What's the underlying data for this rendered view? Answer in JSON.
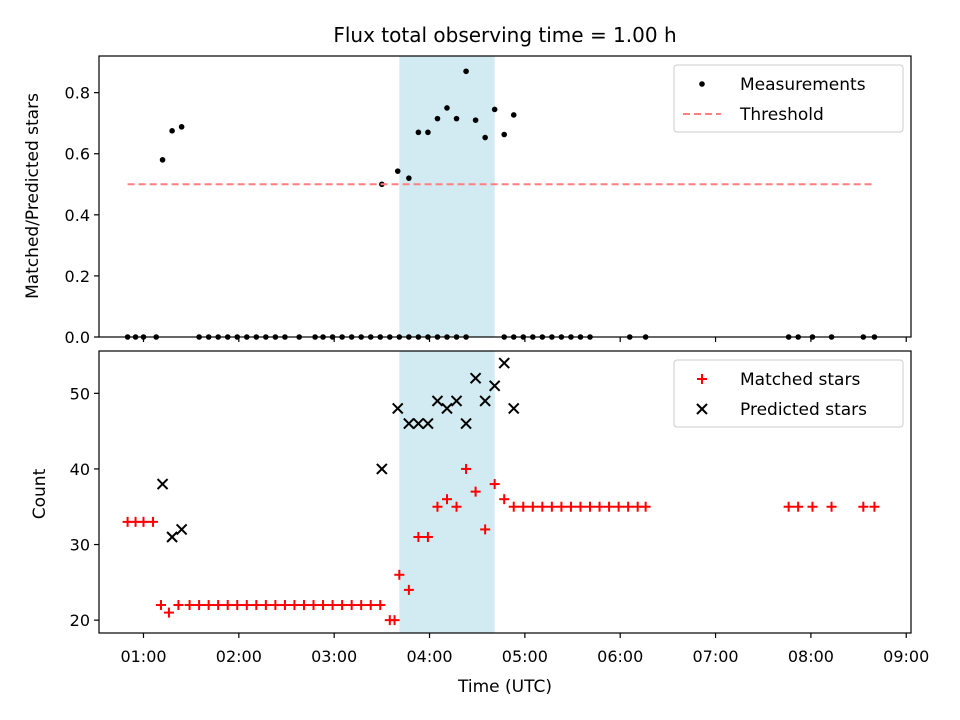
{
  "figure": {
    "title": "Flux total observing time = 1.00 h",
    "xlabel": "Time (UTC)"
  },
  "chart_data": [
    {
      "type": "scatter",
      "ylabel": "Matched/Predicted stars",
      "ylim": [
        0,
        0.92
      ],
      "yticks": [
        0.0,
        0.2,
        0.4,
        0.6,
        0.8
      ],
      "ytick_labels": [
        "0.0",
        "0.2",
        "0.4",
        "0.6",
        "0.8"
      ],
      "xticks": [
        "01:00",
        "02:00",
        "03:00",
        "04:00",
        "05:00",
        "06:00",
        "07:00",
        "08:00",
        "09:00"
      ],
      "xlim": [
        "00:32",
        "09:03"
      ],
      "shaded_region": {
        "from": "03:41",
        "to": "04:41",
        "color": "#add8e6"
      },
      "legend": {
        "placement": "top-right",
        "entries": [
          "Measurements",
          "Threshold"
        ]
      },
      "series": [
        {
          "name": "Measurements",
          "marker": "dot",
          "color": "#000000",
          "points": [
            [
              "00:50",
              0
            ],
            [
              "00:55",
              0
            ],
            [
              "01:00",
              0
            ],
            [
              "01:08",
              0
            ],
            [
              "01:12",
              0.58
            ],
            [
              "01:18",
              0.675
            ],
            [
              "01:24",
              0.688
            ],
            [
              "01:35",
              0
            ],
            [
              "01:41",
              0
            ],
            [
              "01:47",
              0
            ],
            [
              "01:53",
              0
            ],
            [
              "01:59",
              0
            ],
            [
              "02:05",
              0
            ],
            [
              "02:11",
              0
            ],
            [
              "02:17",
              0
            ],
            [
              "02:23",
              0
            ],
            [
              "02:29",
              0
            ],
            [
              "02:38",
              0
            ],
            [
              "02:48",
              0
            ],
            [
              "02:53",
              0
            ],
            [
              "02:59",
              0
            ],
            [
              "03:05",
              0
            ],
            [
              "03:11",
              0
            ],
            [
              "03:17",
              0
            ],
            [
              "03:23",
              0
            ],
            [
              "03:29",
              0
            ],
            [
              "03:35",
              0
            ],
            [
              "03:41",
              0
            ],
            [
              "03:47",
              0
            ],
            [
              "03:53",
              0
            ],
            [
              "03:59",
              0
            ],
            [
              "04:05",
              0
            ],
            [
              "04:11",
              0
            ],
            [
              "04:17",
              0
            ],
            [
              "04:23",
              0
            ],
            [
              "03:30",
              0.5
            ],
            [
              "03:40",
              0.543
            ],
            [
              "03:47",
              0.52
            ],
            [
              "03:53",
              0.67
            ],
            [
              "03:59",
              0.67
            ],
            [
              "04:05",
              0.715
            ],
            [
              "04:11",
              0.75
            ],
            [
              "04:17",
              0.715
            ],
            [
              "04:23",
              0.87
            ],
            [
              "04:29",
              0.71
            ],
            [
              "04:35",
              0.653
            ],
            [
              "04:41",
              0.745
            ],
            [
              "04:47",
              0.663
            ],
            [
              "04:53",
              0.727
            ],
            [
              "04:47",
              0
            ],
            [
              "04:53",
              0
            ],
            [
              "04:59",
              0
            ],
            [
              "05:05",
              0
            ],
            [
              "05:11",
              0
            ],
            [
              "05:17",
              0
            ],
            [
              "05:23",
              0
            ],
            [
              "05:29",
              0
            ],
            [
              "05:35",
              0
            ],
            [
              "05:41",
              0
            ],
            [
              "06:06",
              0
            ],
            [
              "06:16",
              0
            ],
            [
              "07:46",
              0
            ],
            [
              "07:52",
              0
            ],
            [
              "08:01",
              0
            ],
            [
              "08:13",
              0
            ],
            [
              "08:33",
              0
            ],
            [
              "08:40",
              0
            ]
          ]
        },
        {
          "name": "Threshold",
          "style": "dashed",
          "color": "#ff7f7f",
          "x_from": "00:50",
          "x_to": "08:40",
          "y": 0.5
        }
      ]
    },
    {
      "type": "scatter",
      "ylabel": "Count",
      "ylim": [
        18.3,
        55.6
      ],
      "yticks": [
        20,
        30,
        40,
        50
      ],
      "ytick_labels": [
        "20",
        "30",
        "40",
        "50"
      ],
      "xticks": [
        "01:00",
        "02:00",
        "03:00",
        "04:00",
        "05:00",
        "06:00",
        "07:00",
        "08:00",
        "09:00"
      ],
      "xtick_labels": [
        "01:00",
        "02:00",
        "03:00",
        "04:00",
        "05:00",
        "06:00",
        "07:00",
        "08:00",
        "09:00"
      ],
      "xlim": [
        "00:32",
        "09:03"
      ],
      "shaded_region": {
        "from": "03:41",
        "to": "04:41",
        "color": "#add8e6"
      },
      "legend": {
        "placement": "top-right",
        "entries": [
          "Matched stars",
          "Predicted stars"
        ]
      },
      "series": [
        {
          "name": "Matched stars",
          "marker": "plus",
          "color": "#ff0000",
          "points": [
            [
              "00:50",
              33
            ],
            [
              "00:55",
              33
            ],
            [
              "01:00",
              33
            ],
            [
              "01:06",
              33
            ],
            [
              "01:11",
              22
            ],
            [
              "01:16",
              21
            ],
            [
              "01:22",
              22
            ],
            [
              "01:29",
              22
            ],
            [
              "01:35",
              22
            ],
            [
              "01:41",
              22
            ],
            [
              "01:47",
              22
            ],
            [
              "01:53",
              22
            ],
            [
              "01:59",
              22
            ],
            [
              "02:05",
              22
            ],
            [
              "02:11",
              22
            ],
            [
              "02:17",
              22
            ],
            [
              "02:23",
              22
            ],
            [
              "02:29",
              22
            ],
            [
              "02:35",
              22
            ],
            [
              "02:41",
              22
            ],
            [
              "02:47",
              22
            ],
            [
              "02:53",
              22
            ],
            [
              "02:59",
              22
            ],
            [
              "03:05",
              22
            ],
            [
              "03:11",
              22
            ],
            [
              "03:17",
              22
            ],
            [
              "03:23",
              22
            ],
            [
              "03:29",
              22
            ],
            [
              "03:35",
              20
            ],
            [
              "03:38",
              20
            ],
            [
              "03:41",
              26
            ],
            [
              "03:47",
              24
            ],
            [
              "03:53",
              31
            ],
            [
              "03:59",
              31
            ],
            [
              "04:05",
              35
            ],
            [
              "04:11",
              36
            ],
            [
              "04:17",
              35
            ],
            [
              "04:23",
              40
            ],
            [
              "04:29",
              37
            ],
            [
              "04:35",
              32
            ],
            [
              "04:41",
              38
            ],
            [
              "04:47",
              36
            ],
            [
              "04:53",
              35
            ],
            [
              "04:59",
              35
            ],
            [
              "05:05",
              35
            ],
            [
              "05:11",
              35
            ],
            [
              "05:17",
              35
            ],
            [
              "05:23",
              35
            ],
            [
              "05:29",
              35
            ],
            [
              "05:35",
              35
            ],
            [
              "05:41",
              35
            ],
            [
              "05:47",
              35
            ],
            [
              "05:53",
              35
            ],
            [
              "05:59",
              35
            ],
            [
              "06:05",
              35
            ],
            [
              "06:11",
              35
            ],
            [
              "06:16",
              35
            ],
            [
              "07:46",
              35
            ],
            [
              "07:52",
              35
            ],
            [
              "08:01",
              35
            ],
            [
              "08:13",
              35
            ],
            [
              "08:33",
              35
            ],
            [
              "08:40",
              35
            ]
          ]
        },
        {
          "name": "Predicted stars",
          "marker": "x",
          "color": "#000000",
          "points": [
            [
              "01:12",
              38
            ],
            [
              "01:18",
              31
            ],
            [
              "01:24",
              32
            ],
            [
              "03:30",
              40
            ],
            [
              "03:40",
              48
            ],
            [
              "03:47",
              46
            ],
            [
              "03:53",
              46
            ],
            [
              "03:59",
              46
            ],
            [
              "04:05",
              49
            ],
            [
              "04:11",
              48
            ],
            [
              "04:17",
              49
            ],
            [
              "04:23",
              46
            ],
            [
              "04:29",
              52
            ],
            [
              "04:35",
              49
            ],
            [
              "04:41",
              51
            ],
            [
              "04:47",
              54
            ],
            [
              "04:53",
              48
            ]
          ]
        }
      ]
    }
  ]
}
